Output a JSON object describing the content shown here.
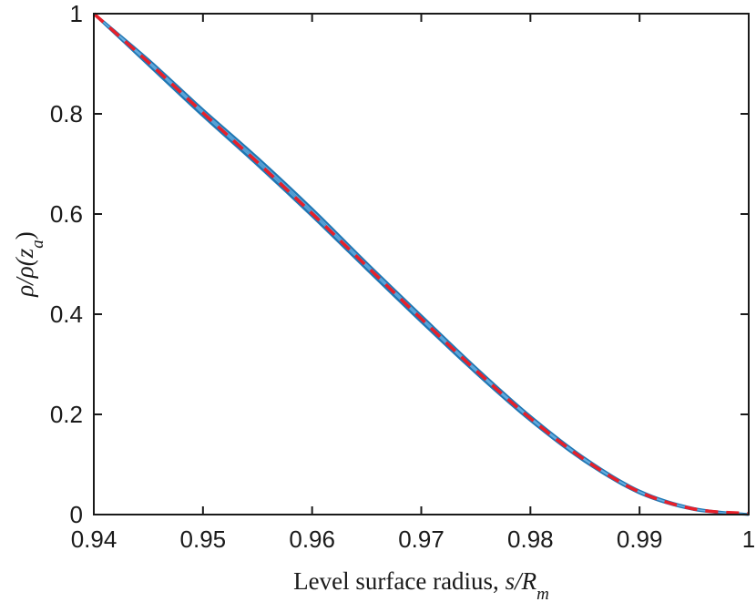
{
  "chart_data": {
    "type": "line",
    "title": "",
    "xlabel": {
      "prefix": "Level surface radius, ",
      "math": "s/R",
      "sub": "m"
    },
    "ylabel": {
      "math": "ρ/ρ(z",
      "sub": "a",
      "suffix": ")"
    },
    "xlim": [
      0.94,
      1.0
    ],
    "ylim": [
      0,
      1
    ],
    "xticks": [
      0.94,
      0.95,
      0.96,
      0.97,
      0.98,
      0.99,
      1.0
    ],
    "xtick_labels": [
      "0.94",
      "0.95",
      "0.96",
      "0.97",
      "0.98",
      "0.99",
      "1"
    ],
    "yticks": [
      0,
      0.2,
      0.4,
      0.6,
      0.8,
      1.0
    ],
    "ytick_labels": [
      "0",
      "0.2",
      "0.4",
      "0.6",
      "0.8",
      "1"
    ],
    "grid": false,
    "legend": "none",
    "band_color": "#1f77b4",
    "inner_line_color": "#6fb0e0",
    "fit_color": "#e8202a",
    "series": [
      {
        "style": "band-upper",
        "x": [
          0.94,
          0.945,
          0.95,
          0.955,
          0.96,
          0.965,
          0.97,
          0.975,
          0.98,
          0.985,
          0.99,
          0.995,
          1.0
        ],
        "y": [
          1.0,
          0.908,
          0.808,
          0.712,
          0.61,
          0.502,
          0.397,
          0.293,
          0.196,
          0.112,
          0.047,
          0.012,
          0.0
        ]
      },
      {
        "style": "band-lower",
        "x": [
          0.94,
          0.945,
          0.95,
          0.955,
          0.96,
          0.965,
          0.97,
          0.975,
          0.98,
          0.985,
          0.99,
          0.995,
          1.0
        ],
        "y": [
          1.0,
          0.898,
          0.796,
          0.698,
          0.596,
          0.49,
          0.385,
          0.283,
          0.188,
          0.106,
          0.043,
          0.01,
          0.0
        ]
      },
      {
        "style": "fit-dashed",
        "x": [
          0.94,
          0.945,
          0.95,
          0.955,
          0.96,
          0.965,
          0.97,
          0.975,
          0.98,
          0.985,
          0.99,
          0.995,
          1.0
        ],
        "y": [
          1.0,
          0.903,
          0.802,
          0.703,
          0.601,
          0.496,
          0.391,
          0.288,
          0.192,
          0.109,
          0.045,
          0.011,
          0.002
        ]
      }
    ]
  }
}
